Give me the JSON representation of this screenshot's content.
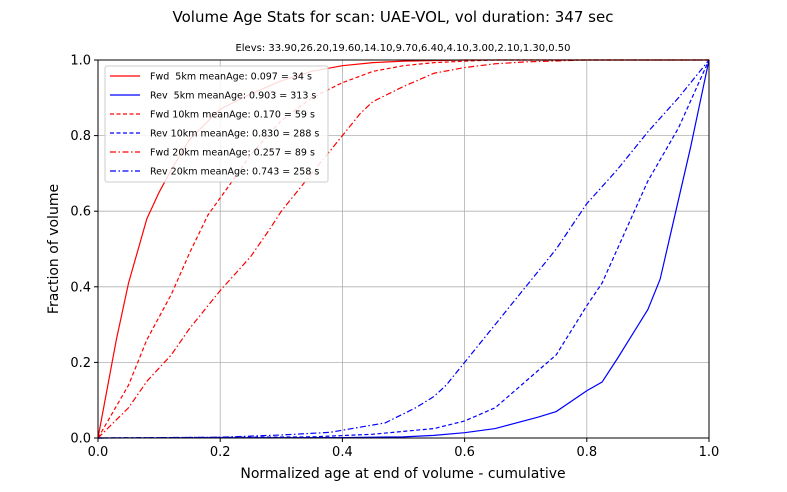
{
  "chart_data": {
    "type": "line",
    "title": "Volume Age Stats for scan: UAE-VOL, vol duration: 347 sec",
    "subtitle": "Elevs: 33.90,26.20,19.60,14.10,9.70,6.40,4.10,3.00,2.10,1.30,0.50",
    "xlabel": "Normalized age at end of volume - cumulative",
    "ylabel": "Fraction of volume",
    "xlim": [
      0,
      1
    ],
    "ylim": [
      0,
      1
    ],
    "xticks": [
      "0.0",
      "0.2",
      "0.4",
      "0.6",
      "0.8",
      "1.0"
    ],
    "yticks": [
      "0.0",
      "0.2",
      "0.4",
      "0.6",
      "0.8",
      "1.0"
    ],
    "grid": true,
    "legend_position": "top-left",
    "series": [
      {
        "name": "Fwd  5km meanAge: 0.097 = 34 s",
        "color": "#ff0000",
        "style": "solid",
        "points": [
          [
            0,
            0
          ],
          [
            0.03,
            0.26
          ],
          [
            0.05,
            0.41
          ],
          [
            0.08,
            0.58
          ],
          [
            0.1,
            0.65
          ],
          [
            0.12,
            0.71
          ],
          [
            0.15,
            0.79
          ],
          [
            0.2,
            0.87
          ],
          [
            0.25,
            0.91
          ],
          [
            0.3,
            0.945
          ],
          [
            0.35,
            0.97
          ],
          [
            0.4,
            0.985
          ],
          [
            0.45,
            0.993
          ],
          [
            0.5,
            0.997
          ],
          [
            0.6,
            1.0
          ],
          [
            1.0,
            1.0
          ]
        ]
      },
      {
        "name": "Rev  5km meanAge: 0.903 = 313 s",
        "color": "#0000ff",
        "style": "solid",
        "points": [
          [
            0,
            0
          ],
          [
            0.4,
            0.001
          ],
          [
            0.5,
            0.003
          ],
          [
            0.55,
            0.007
          ],
          [
            0.6,
            0.014
          ],
          [
            0.65,
            0.025
          ],
          [
            0.72,
            0.055
          ],
          [
            0.75,
            0.07
          ],
          [
            0.8,
            0.125
          ],
          [
            0.825,
            0.148
          ],
          [
            0.85,
            0.21
          ],
          [
            0.9,
            0.34
          ],
          [
            0.92,
            0.42
          ],
          [
            0.94,
            0.56
          ],
          [
            0.97,
            0.77
          ],
          [
            1.0,
            1.0
          ]
        ]
      },
      {
        "name": "Fwd 10km meanAge: 0.170 = 59 s",
        "color": "#ff0000",
        "style": "dashed",
        "points": [
          [
            0,
            0
          ],
          [
            0.05,
            0.14
          ],
          [
            0.08,
            0.26
          ],
          [
            0.12,
            0.38
          ],
          [
            0.15,
            0.49
          ],
          [
            0.18,
            0.59
          ],
          [
            0.22,
            0.68
          ],
          [
            0.25,
            0.75
          ],
          [
            0.3,
            0.84
          ],
          [
            0.35,
            0.9
          ],
          [
            0.4,
            0.94
          ],
          [
            0.45,
            0.97
          ],
          [
            0.5,
            0.985
          ],
          [
            0.55,
            0.993
          ],
          [
            0.6,
            0.997
          ],
          [
            0.65,
            1.0
          ],
          [
            1.0,
            1.0
          ]
        ]
      },
      {
        "name": "Rev 10km meanAge: 0.830 = 288 s",
        "color": "#0000ff",
        "style": "dashed",
        "points": [
          [
            0,
            0
          ],
          [
            0.35,
            0.003
          ],
          [
            0.45,
            0.01
          ],
          [
            0.55,
            0.025
          ],
          [
            0.6,
            0.045
          ],
          [
            0.65,
            0.08
          ],
          [
            0.7,
            0.15
          ],
          [
            0.75,
            0.22
          ],
          [
            0.8,
            0.35
          ],
          [
            0.825,
            0.41
          ],
          [
            0.85,
            0.5
          ],
          [
            0.9,
            0.68
          ],
          [
            0.95,
            0.82
          ],
          [
            1.0,
            1.0
          ]
        ]
      },
      {
        "name": "Fwd 20km meanAge: 0.257 = 89 s",
        "color": "#ff0000",
        "style": "dashdot",
        "points": [
          [
            0,
            0
          ],
          [
            0.05,
            0.08
          ],
          [
            0.08,
            0.15
          ],
          [
            0.12,
            0.22
          ],
          [
            0.15,
            0.29
          ],
          [
            0.2,
            0.39
          ],
          [
            0.25,
            0.48
          ],
          [
            0.28,
            0.55
          ],
          [
            0.3,
            0.6
          ],
          [
            0.35,
            0.7
          ],
          [
            0.4,
            0.8
          ],
          [
            0.43,
            0.86
          ],
          [
            0.45,
            0.89
          ],
          [
            0.5,
            0.93
          ],
          [
            0.55,
            0.965
          ],
          [
            0.6,
            0.98
          ],
          [
            0.65,
            0.99
          ],
          [
            0.7,
            0.995
          ],
          [
            0.8,
            1.0
          ],
          [
            1.0,
            1.0
          ]
        ]
      },
      {
        "name": "Rev 20km meanAge: 0.743 = 258 s",
        "color": "#0000ff",
        "style": "dashdot",
        "points": [
          [
            0,
            0
          ],
          [
            0.2,
            0.002
          ],
          [
            0.3,
            0.008
          ],
          [
            0.38,
            0.015
          ],
          [
            0.47,
            0.04
          ],
          [
            0.52,
            0.08
          ],
          [
            0.55,
            0.11
          ],
          [
            0.57,
            0.14
          ],
          [
            0.6,
            0.2
          ],
          [
            0.63,
            0.26
          ],
          [
            0.65,
            0.3
          ],
          [
            0.7,
            0.4
          ],
          [
            0.75,
            0.5
          ],
          [
            0.8,
            0.62
          ],
          [
            0.85,
            0.71
          ],
          [
            0.9,
            0.81
          ],
          [
            0.95,
            0.9
          ],
          [
            1.0,
            1.0
          ]
        ]
      }
    ]
  }
}
